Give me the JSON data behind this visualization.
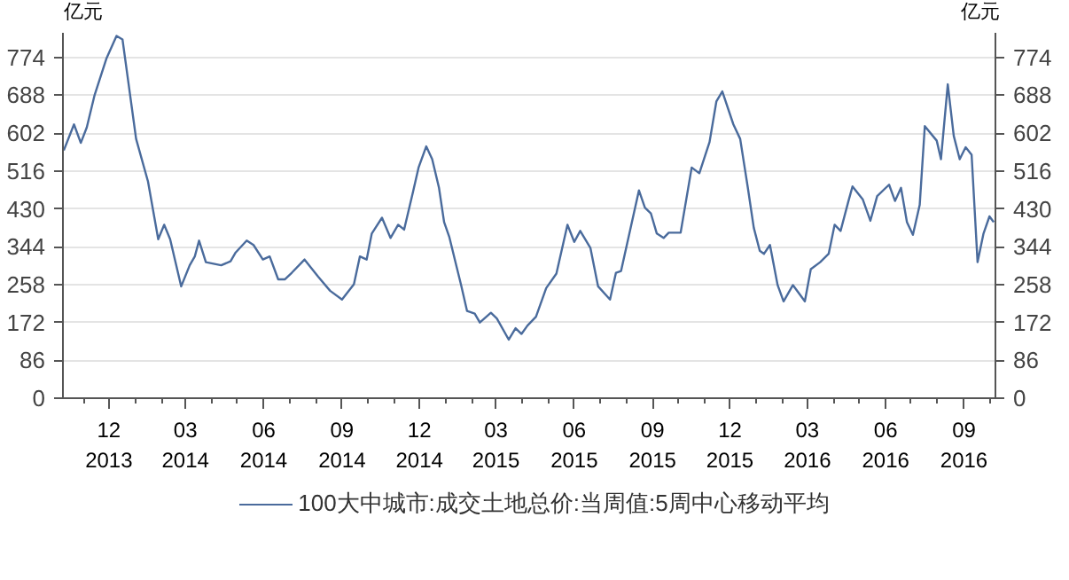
{
  "chart_data": {
    "type": "line",
    "ylabel": "亿元",
    "y2label": "亿元",
    "x": [
      "2013-10-09",
      "2013-10-21",
      "2013-10-29",
      "2013-11-05",
      "2013-11-14",
      "2013-11-28",
      "2013-12-10",
      "2013-12-17",
      "2014-01-02",
      "2014-01-16",
      "2014-01-28",
      "2014-02-04",
      "2014-02-11",
      "2014-02-24",
      "2014-03-06",
      "2014-03-12",
      "2014-03-17",
      "2014-03-25",
      "2014-04-12",
      "2014-04-23",
      "2014-04-29",
      "2014-05-12",
      "2014-05-20",
      "2014-05-31",
      "2014-06-08",
      "2014-06-18",
      "2014-06-26",
      "2014-07-04",
      "2014-07-19",
      "2014-08-04",
      "2014-08-18",
      "2014-09-01",
      "2014-09-15",
      "2014-09-22",
      "2014-09-30",
      "2014-10-06",
      "2014-10-18",
      "2014-10-28",
      "2014-11-06",
      "2014-11-13",
      "2014-11-23",
      "2014-11-30",
      "2014-12-09",
      "2014-12-16",
      "2014-12-24",
      "2014-12-30",
      "2015-01-05",
      "2015-01-14",
      "2015-01-19",
      "2015-01-26",
      "2015-02-04",
      "2015-02-10",
      "2015-02-23",
      "2015-03-02",
      "2015-03-16",
      "2015-03-24",
      "2015-03-31",
      "2015-04-07",
      "2015-04-17",
      "2015-04-29",
      "2015-05-11",
      "2015-05-24",
      "2015-06-01",
      "2015-06-08",
      "2015-06-20",
      "2015-06-29",
      "2015-07-13",
      "2015-07-20",
      "2015-07-26",
      "2015-08-16",
      "2015-08-23",
      "2015-08-30",
      "2015-09-06",
      "2015-09-14",
      "2015-09-20",
      "2015-10-04",
      "2015-10-17",
      "2015-10-26",
      "2015-11-07",
      "2015-11-15",
      "2015-11-22",
      "2015-12-05",
      "2015-12-13",
      "2015-12-22",
      "2015-12-29",
      "2016-01-05",
      "2016-01-10",
      "2016-01-17",
      "2016-01-26",
      "2016-02-02",
      "2016-02-13",
      "2016-02-27",
      "2016-03-05",
      "2016-03-16",
      "2016-03-26",
      "2016-04-02",
      "2016-04-09",
      "2016-04-18",
      "2016-04-23",
      "2016-05-05",
      "2016-05-14",
      "2016-05-22",
      "2016-06-05",
      "2016-06-12",
      "2016-06-19",
      "2016-06-26",
      "2016-07-03",
      "2016-07-11",
      "2016-07-17",
      "2016-07-31",
      "2016-08-05",
      "2016-08-13",
      "2016-08-20",
      "2016-08-27",
      "2016-09-03",
      "2016-09-10",
      "2016-09-17",
      "2016-09-24",
      "2016-10-01",
      "2016-10-06"
    ],
    "series": [
      {
        "name": "100大中城市:成交土地总价:当周值:5周中心移动平均",
        "color": "#4a6b9c",
        "values": [
          563,
          622,
          580,
          615,
          687,
          771,
          823,
          815,
          589,
          492,
          361,
          394,
          361,
          254,
          302,
          322,
          358,
          309,
          302,
          311,
          331,
          358,
          348,
          315,
          322,
          270,
          270,
          285,
          315,
          276,
          244,
          224,
          259,
          322,
          315,
          374,
          410,
          364,
          394,
          383,
          465,
          524,
          572,
          543,
          478,
          400,
          367,
          296,
          257,
          198,
          192,
          172,
          194,
          181,
          133,
          159,
          146,
          165,
          185,
          250,
          283,
          394,
          355,
          380,
          341,
          254,
          224,
          285,
          289,
          472,
          433,
          420,
          374,
          364,
          376,
          376,
          524,
          511,
          582,
          674,
          697,
          622,
          589,
          478,
          387,
          335,
          328,
          348,
          257,
          220,
          257,
          220,
          293,
          309,
          328,
          394,
          380,
          446,
          481,
          452,
          403,
          459,
          485,
          448,
          478,
          400,
          371,
          439,
          618,
          585,
          543,
          713,
          596,
          543,
          570,
          553,
          309,
          374,
          413,
          400
        ]
      }
    ],
    "xlim": [
      "2013-10-08",
      "2016-10-08"
    ],
    "xticks": [
      {
        "value": "2013-12",
        "label": "12\n2013"
      },
      {
        "value": "2014-03",
        "label": "03\n2014"
      },
      {
        "value": "2014-06",
        "label": "06\n2014"
      },
      {
        "value": "2014-09",
        "label": "09\n2014"
      },
      {
        "value": "2014-12",
        "label": "12\n2014"
      },
      {
        "value": "2015-03",
        "label": "03\n2015"
      },
      {
        "value": "2015-06",
        "label": "06\n2015"
      },
      {
        "value": "2015-09",
        "label": "09\n2015"
      },
      {
        "value": "2015-12",
        "label": "12\n2015"
      },
      {
        "value": "2016-03",
        "label": "03\n2016"
      },
      {
        "value": "2016-06",
        "label": "06\n2016"
      },
      {
        "value": "2016-09",
        "label": "09\n2016"
      }
    ],
    "ylim": [
      0,
      830
    ],
    "yticks": [
      0,
      86,
      172,
      258,
      344,
      430,
      516,
      602,
      688,
      774
    ],
    "y2lim": [
      0,
      830
    ],
    "y2ticks": [
      0,
      86,
      172,
      258,
      344,
      430,
      516,
      602,
      688,
      774
    ],
    "grid": "y",
    "legend": "bottom",
    "marker": "none",
    "line_style": "solid"
  }
}
